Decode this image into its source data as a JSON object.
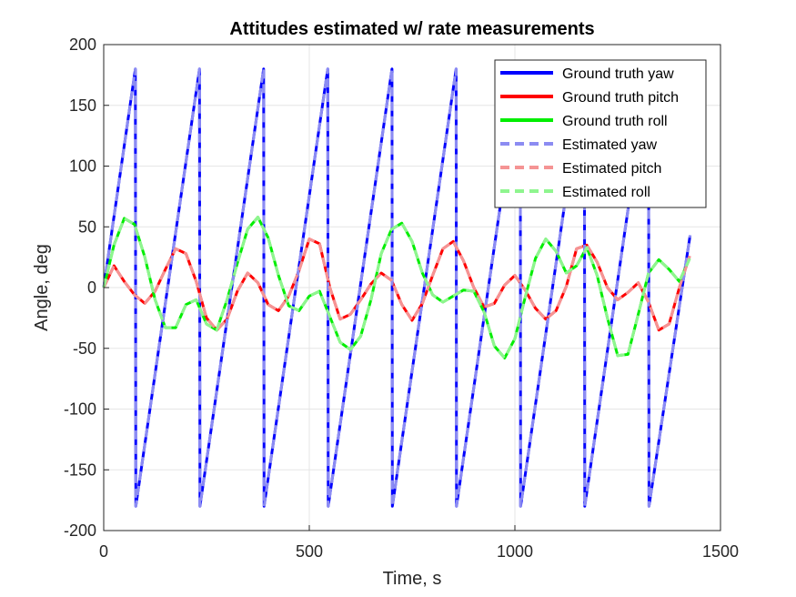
{
  "chart_data": {
    "type": "line",
    "title": "Attitudes estimated w/ rate measurements",
    "xlabel": "Time, s",
    "ylabel": "Angle, deg",
    "xlim": [
      0,
      1500
    ],
    "ylim": [
      -200,
      200
    ],
    "xticks": [
      0,
      500,
      1000,
      1500
    ],
    "xtick_labels": [
      "0",
      "500",
      "1000",
      "1500"
    ],
    "yticks": [
      -200,
      -150,
      -100,
      -50,
      0,
      50,
      100,
      150,
      200
    ],
    "ytick_labels": [
      "-200",
      "-150",
      "-100",
      "-50",
      "0",
      "50",
      "100",
      "150",
      "200"
    ],
    "grid": true,
    "legend_position": "top-right",
    "series": [
      {
        "name": "Ground truth yaw",
        "color": "#0000ff",
        "style": "solid",
        "x": [
          0,
          77,
          78,
          233,
          234,
          389,
          390,
          545,
          546,
          701,
          702,
          857,
          858,
          1013,
          1014,
          1169,
          1170,
          1325,
          1326,
          1426
        ],
        "y": [
          0,
          180,
          -180,
          180,
          -180,
          180,
          -180,
          180,
          -180,
          180,
          -180,
          180,
          -180,
          180,
          -180,
          180,
          -180,
          180,
          -180,
          43
        ]
      },
      {
        "name": "Ground truth pitch",
        "color": "#ff0000",
        "style": "solid",
        "x": [
          0,
          25,
          50,
          75,
          100,
          125,
          150,
          175,
          200,
          225,
          250,
          275,
          300,
          325,
          350,
          375,
          400,
          425,
          450,
          475,
          500,
          525,
          550,
          575,
          600,
          625,
          650,
          675,
          700,
          725,
          750,
          775,
          800,
          825,
          850,
          875,
          900,
          925,
          950,
          975,
          1000,
          1025,
          1050,
          1075,
          1100,
          1125,
          1150,
          1175,
          1200,
          1225,
          1250,
          1275,
          1300,
          1325,
          1350,
          1375,
          1400,
          1425
        ],
        "y": [
          0,
          18,
          5,
          -6,
          -13,
          -3,
          15,
          32,
          28,
          5,
          -25,
          -35,
          -26,
          -3,
          12,
          4,
          -14,
          -19,
          -7,
          14,
          40,
          36,
          0,
          -26,
          -22,
          -10,
          3,
          12,
          6,
          -14,
          -27,
          -13,
          10,
          32,
          38,
          22,
          0,
          -16,
          -13,
          2,
          10,
          -2,
          -17,
          -26,
          -19,
          1,
          32,
          35,
          21,
          0,
          -10,
          -4,
          4,
          -12,
          -35,
          -30,
          0,
          26
        ]
      },
      {
        "name": "Ground truth roll",
        "color": "#00ee00",
        "style": "solid",
        "x": [
          0,
          25,
          50,
          75,
          100,
          125,
          150,
          175,
          200,
          225,
          250,
          275,
          300,
          325,
          350,
          375,
          400,
          425,
          450,
          475,
          500,
          525,
          550,
          575,
          600,
          625,
          650,
          675,
          700,
          725,
          750,
          775,
          800,
          825,
          850,
          875,
          900,
          925,
          950,
          975,
          1000,
          1025,
          1050,
          1075,
          1100,
          1125,
          1150,
          1175,
          1200,
          1225,
          1250,
          1275,
          1300,
          1325,
          1350,
          1375,
          1400,
          1425
        ],
        "y": [
          0,
          35,
          57,
          52,
          25,
          -10,
          -33,
          -33,
          -14,
          -10,
          -30,
          -35,
          -10,
          20,
          48,
          58,
          41,
          10,
          -15,
          -19,
          -7,
          -3,
          -24,
          -45,
          -51,
          -40,
          -10,
          28,
          48,
          53,
          38,
          12,
          -6,
          -12,
          -7,
          -2,
          -3,
          -20,
          -48,
          -58,
          -42,
          -8,
          24,
          40,
          30,
          12,
          18,
          33,
          10,
          -25,
          -56,
          -55,
          -22,
          12,
          23,
          15,
          5,
          24
        ]
      },
      {
        "name": "Estimated yaw",
        "color": "#8c8cf2",
        "style": "dashed",
        "x": [
          0,
          77,
          78,
          233,
          234,
          389,
          390,
          545,
          546,
          701,
          702,
          857,
          858,
          1013,
          1014,
          1169,
          1170,
          1325,
          1326,
          1426
        ],
        "y": [
          0,
          180,
          -180,
          180,
          -180,
          180,
          -180,
          180,
          -180,
          180,
          -180,
          180,
          -180,
          180,
          -180,
          180,
          -180,
          180,
          -180,
          43
        ]
      },
      {
        "name": "Estimated pitch",
        "color": "#f59494",
        "style": "dashed",
        "x": [
          0,
          25,
          50,
          75,
          100,
          125,
          150,
          175,
          200,
          225,
          250,
          275,
          300,
          325,
          350,
          375,
          400,
          425,
          450,
          475,
          500,
          525,
          550,
          575,
          600,
          625,
          650,
          675,
          700,
          725,
          750,
          775,
          800,
          825,
          850,
          875,
          900,
          925,
          950,
          975,
          1000,
          1025,
          1050,
          1075,
          1100,
          1125,
          1150,
          1175,
          1200,
          1225,
          1250,
          1275,
          1300,
          1325,
          1350,
          1375,
          1400,
          1425
        ],
        "y": [
          0,
          18,
          5,
          -6,
          -13,
          -3,
          15,
          32,
          28,
          5,
          -25,
          -35,
          -26,
          -3,
          12,
          4,
          -14,
          -19,
          -7,
          14,
          40,
          36,
          0,
          -26,
          -22,
          -10,
          3,
          12,
          6,
          -14,
          -27,
          -13,
          10,
          32,
          38,
          22,
          0,
          -16,
          -13,
          2,
          10,
          -2,
          -17,
          -26,
          -19,
          1,
          32,
          35,
          21,
          0,
          -10,
          -4,
          4,
          -12,
          -35,
          -30,
          0,
          26
        ]
      },
      {
        "name": "Estimated roll",
        "color": "#8ff58f",
        "style": "dashed",
        "x": [
          0,
          25,
          50,
          75,
          100,
          125,
          150,
          175,
          200,
          225,
          250,
          275,
          300,
          325,
          350,
          375,
          400,
          425,
          450,
          475,
          500,
          525,
          550,
          575,
          600,
          625,
          650,
          675,
          700,
          725,
          750,
          775,
          800,
          825,
          850,
          875,
          900,
          925,
          950,
          975,
          1000,
          1025,
          1050,
          1075,
          1100,
          1125,
          1150,
          1175,
          1200,
          1225,
          1250,
          1275,
          1300,
          1325,
          1350,
          1375,
          1400,
          1425
        ],
        "y": [
          0,
          35,
          57,
          52,
          25,
          -10,
          -33,
          -33,
          -14,
          -10,
          -30,
          -35,
          -10,
          20,
          48,
          58,
          41,
          10,
          -15,
          -19,
          -7,
          -3,
          -24,
          -45,
          -51,
          -40,
          -10,
          28,
          48,
          53,
          38,
          12,
          -6,
          -12,
          -7,
          -2,
          -3,
          -20,
          -48,
          -58,
          -42,
          -8,
          24,
          40,
          30,
          12,
          18,
          33,
          10,
          -25,
          -56,
          -55,
          -22,
          12,
          23,
          15,
          5,
          24
        ]
      }
    ]
  }
}
